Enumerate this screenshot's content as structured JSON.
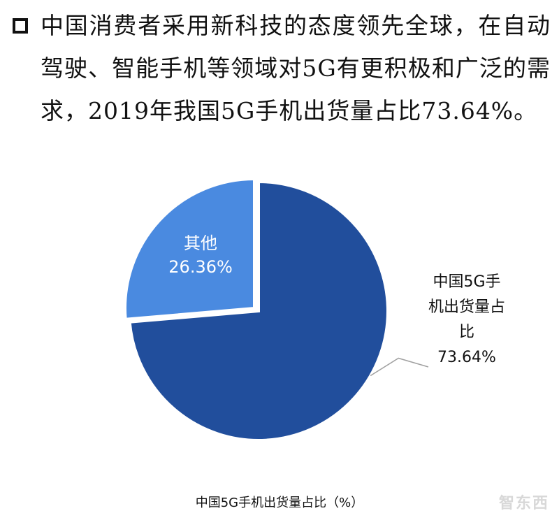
{
  "headline": {
    "text": "中国消费者采用新科技的态度领先全球，在自动驾驶、智能手机等领域对5G有更积极和广泛的需求，2019年我国5G手机出货量占比73.64%。"
  },
  "watermark": {
    "text": "智东西"
  },
  "colors": {
    "main_slice": "#214e9c",
    "other_slice": "#4a8ae0",
    "leader_line": "#a0a0a0"
  },
  "chart_data": {
    "type": "pie",
    "title": "中国5G手机出货量占比（%）",
    "slices": [
      {
        "label": "中国5G手机出货量占比",
        "value": 73.64,
        "display": "73.64%"
      },
      {
        "label": "其他",
        "value": 26.36,
        "display": "26.36%"
      }
    ]
  }
}
